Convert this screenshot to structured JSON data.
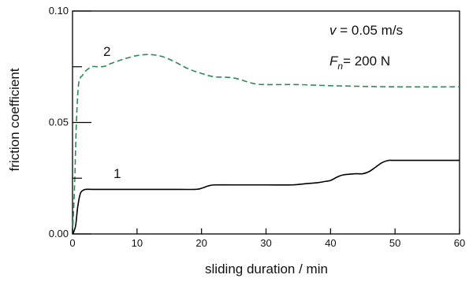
{
  "chart_data": {
    "type": "line",
    "title": "",
    "xlabel": "sliding duration / min",
    "ylabel": "friction  coefficient",
    "xlim": [
      0,
      60
    ],
    "ylim": [
      0,
      0.1
    ],
    "x_ticks": [
      0,
      10,
      20,
      30,
      40,
      50,
      60
    ],
    "x_tick_labels": [
      "0",
      "10",
      "20",
      "30",
      "40",
      "50",
      "60"
    ],
    "y_ticks": [
      0,
      0.05,
      0.1
    ],
    "y_tick_labels": [
      "0.00",
      "0.05",
      "0.10"
    ],
    "y_minor_ticks": [
      0.025,
      0.075
    ],
    "grid": false,
    "legend": "none",
    "annotations": {
      "velocity": {
        "italic": "v",
        "rest": " = 0.05 m/s"
      },
      "force": {
        "italic": "F",
        "sub": "n",
        "rest": "= 200 N"
      }
    },
    "series": [
      {
        "label": "1",
        "color": "#000000",
        "dash": "solid",
        "x": [
          0,
          0.2,
          0.5,
          0.8,
          1.2,
          1.6,
          2,
          3,
          5,
          10,
          15,
          19,
          20,
          21,
          22,
          25,
          30,
          34,
          36,
          38,
          39,
          40,
          41,
          42,
          44,
          45,
          46,
          47,
          48,
          49,
          50,
          55,
          60
        ],
        "y": [
          0,
          0.001,
          0.004,
          0.012,
          0.018,
          0.0195,
          0.02,
          0.02,
          0.02,
          0.02,
          0.02,
          0.02,
          0.0205,
          0.0215,
          0.022,
          0.022,
          0.022,
          0.022,
          0.0225,
          0.023,
          0.0235,
          0.024,
          0.0255,
          0.0265,
          0.027,
          0.027,
          0.028,
          0.03,
          0.032,
          0.033,
          0.033,
          0.033,
          0.033
        ]
      },
      {
        "label": "2",
        "color": "#2e8b57",
        "dash": "dashed",
        "x": [
          0,
          0.3,
          0.6,
          0.9,
          1.2,
          1.5,
          2,
          3,
          4,
          5,
          6,
          8,
          10,
          12,
          14,
          16,
          18,
          20,
          22,
          25,
          28,
          30,
          35,
          40,
          50,
          60
        ],
        "y": [
          0,
          0.02,
          0.05,
          0.066,
          0.07,
          0.071,
          0.073,
          0.075,
          0.075,
          0.0752,
          0.0765,
          0.0785,
          0.08,
          0.0805,
          0.0795,
          0.077,
          0.074,
          0.072,
          0.0705,
          0.07,
          0.0675,
          0.067,
          0.067,
          0.0665,
          0.066,
          0.066
        ]
      }
    ]
  }
}
